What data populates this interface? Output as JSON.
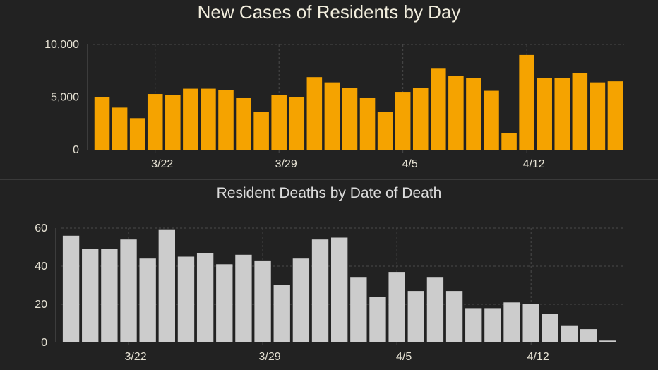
{
  "chart_data": [
    {
      "type": "bar",
      "title": "New Cases of Residents by Day",
      "xlabel": "",
      "ylabel": "",
      "ylim": [
        0,
        10000
      ],
      "yticks": [
        "0",
        "5,000",
        "10,000"
      ],
      "ytick_values": [
        0,
        5000,
        10000
      ],
      "xtick_labels": [
        "3/22",
        "3/29",
        "4/5",
        "4/12"
      ],
      "xtick_indices": [
        3,
        10,
        17,
        24
      ],
      "grid": true,
      "color": "#f5a300",
      "values": [
        5000,
        4000,
        3000,
        5300,
        5200,
        5800,
        5800,
        5700,
        4900,
        3600,
        5200,
        5000,
        6900,
        6400,
        5900,
        4900,
        3600,
        5500,
        5900,
        7700,
        7000,
        6800,
        5600,
        1600,
        9000,
        6800,
        6800,
        7300,
        6400,
        6500
      ]
    },
    {
      "type": "bar",
      "title": "Resident Deaths by Date of Death",
      "xlabel": "",
      "ylabel": "",
      "ylim": [
        0,
        60
      ],
      "yticks": [
        "0",
        "20",
        "40",
        "60"
      ],
      "ytick_values": [
        0,
        20,
        40,
        60
      ],
      "xtick_labels": [
        "3/22",
        "3/29",
        "4/5",
        "4/12"
      ],
      "xtick_indices": [
        3,
        10,
        17,
        24
      ],
      "grid": true,
      "color": "#cccccc",
      "values": [
        56,
        49,
        49,
        54,
        44,
        59,
        45,
        47,
        41,
        46,
        43,
        30,
        44,
        54,
        55,
        34,
        24,
        37,
        27,
        34,
        27,
        18,
        18,
        21,
        20,
        15,
        9,
        7,
        1
      ]
    }
  ]
}
